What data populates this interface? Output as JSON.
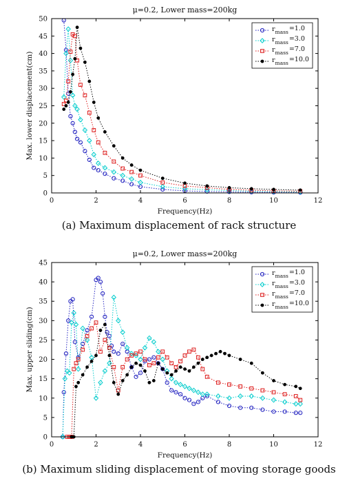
{
  "chart_data": [
    {
      "type": "scatter",
      "title": "μ=0.2, Lower mass=200kg",
      "xlabel": "Frequency(Hz)",
      "ylabel": "Max. lower displacement(cm)",
      "xlim": [
        0,
        12
      ],
      "ylim": [
        0,
        50
      ],
      "xticks": [
        0,
        2,
        4,
        6,
        8,
        10,
        12
      ],
      "yticks": [
        0,
        5,
        10,
        15,
        20,
        25,
        30,
        35,
        40,
        45,
        50
      ],
      "grid": false,
      "legend_position": "top-right",
      "caption": "(a) Maximum displacement of rack structure",
      "series": [
        {
          "name_main": "r",
          "name_sub": "mass",
          "name_value": "=1.0",
          "color": "#1f1fbf",
          "marker": "circle",
          "x": [
            0.55,
            0.65,
            0.75,
            0.85,
            0.95,
            1.05,
            1.15,
            1.3,
            1.5,
            1.7,
            1.9,
            2.1,
            2.4,
            2.8,
            3.2,
            3.6,
            4.0,
            5.0,
            6.0,
            7.0,
            8.0,
            9.0,
            10.0,
            11.2
          ],
          "y": [
            49.5,
            41.0,
            28.5,
            22.0,
            20.0,
            17.5,
            15.5,
            14.5,
            12.0,
            9.5,
            7.2,
            6.5,
            5.5,
            4.2,
            3.5,
            2.5,
            1.8,
            1.0,
            0.6,
            0.4,
            0.3,
            0.2,
            0.15,
            0.1
          ]
        },
        {
          "name_main": "r",
          "name_sub": "mass",
          "name_value": "=3.0",
          "color": "#00cccc",
          "marker": "diamond",
          "x": [
            0.55,
            0.65,
            0.75,
            0.85,
            0.95,
            1.05,
            1.15,
            1.3,
            1.5,
            1.7,
            1.9,
            2.1,
            2.4,
            2.8,
            3.2,
            3.6,
            4.0,
            5.0,
            6.0,
            7.0,
            8.0,
            9.0,
            10.0,
            11.2
          ],
          "y": [
            27.5,
            40.0,
            47.0,
            38.0,
            28.0,
            25.0,
            24.0,
            21.0,
            18.0,
            15.0,
            11.0,
            8.5,
            7.2,
            6.0,
            5.0,
            4.0,
            3.0,
            1.8,
            1.2,
            0.9,
            0.7,
            0.5,
            0.4,
            0.3
          ]
        },
        {
          "name_main": "r",
          "name_sub": "mass",
          "name_value": "=7.0",
          "color": "#dd1c1c",
          "marker": "square",
          "x": [
            0.55,
            0.65,
            0.75,
            0.85,
            0.95,
            1.05,
            1.15,
            1.3,
            1.5,
            1.7,
            1.9,
            2.1,
            2.4,
            2.8,
            3.2,
            3.6,
            4.0,
            5.0,
            6.0,
            7.0,
            8.0,
            9.0,
            10.0,
            11.2
          ],
          "y": [
            25.5,
            26.5,
            32.0,
            40.5,
            45.5,
            45.0,
            38.0,
            31.0,
            28.0,
            23.0,
            18.0,
            14.5,
            11.5,
            9.0,
            7.0,
            6.0,
            5.0,
            3.0,
            2.0,
            1.5,
            1.0,
            0.8,
            0.6,
            0.5
          ]
        },
        {
          "name_main": "r",
          "name_sub": "mass",
          "name_value": "=10.0",
          "color": "#000000",
          "marker": "dot",
          "x": [
            0.55,
            0.65,
            0.75,
            0.85,
            0.95,
            1.05,
            1.15,
            1.3,
            1.5,
            1.7,
            1.9,
            2.1,
            2.4,
            2.8,
            3.2,
            3.6,
            4.0,
            5.0,
            6.0,
            7.0,
            8.0,
            9.0,
            10.0,
            11.2
          ],
          "y": [
            24.0,
            25.0,
            26.0,
            29.0,
            34.0,
            38.5,
            47.5,
            41.5,
            37.5,
            32.0,
            26.0,
            21.5,
            17.5,
            13.5,
            10.0,
            8.0,
            6.5,
            4.2,
            2.8,
            2.0,
            1.5,
            1.2,
            1.0,
            0.8
          ]
        }
      ]
    },
    {
      "type": "scatter",
      "title": "μ=0.2, Lower mass=200kg",
      "xlabel": "Frequency(Hz)",
      "ylabel": "Max. upper sliding(cm)",
      "xlim": [
        0,
        12
      ],
      "ylim": [
        0,
        45
      ],
      "xticks": [
        0,
        2,
        4,
        6,
        8,
        10,
        12
      ],
      "yticks": [
        0,
        5,
        10,
        15,
        20,
        25,
        30,
        35,
        40,
        45
      ],
      "grid": false,
      "legend_position": "top-right",
      "caption": "(b) Maximum sliding displacement of moving storage goods",
      "series": [
        {
          "name_main": "r",
          "name_sub": "mass",
          "name_value": "=1.0",
          "color": "#1f1fbf",
          "marker": "circle",
          "x": [
            0.5,
            0.55,
            0.65,
            0.75,
            0.85,
            0.95,
            1.05,
            1.2,
            1.4,
            1.6,
            1.8,
            2.0,
            2.1,
            2.2,
            2.3,
            2.4,
            2.5,
            2.6,
            2.7,
            2.8,
            3.0,
            3.2,
            3.4,
            3.6,
            3.8,
            4.0,
            4.2,
            4.4,
            4.6,
            4.8,
            5.0,
            5.2,
            5.4,
            5.6,
            5.8,
            6.0,
            6.2,
            6.4,
            6.6,
            6.8,
            7.0,
            7.5,
            8.0,
            8.5,
            9.0,
            9.5,
            10.0,
            10.5,
            11.0,
            11.2
          ],
          "y": [
            0,
            11.5,
            21.5,
            30.0,
            35.0,
            35.5,
            24.5,
            20.5,
            24.0,
            27.5,
            31.0,
            40.5,
            41.0,
            40.0,
            37.0,
            31.0,
            27.0,
            26.0,
            23.5,
            22.0,
            21.5,
            24.0,
            22.0,
            18.0,
            15.5,
            16.5,
            19.5,
            20.0,
            20.5,
            19.0,
            17.5,
            14.0,
            12.0,
            11.5,
            11.0,
            10.0,
            9.5,
            8.5,
            9.0,
            10.0,
            10.5,
            9.0,
            8.0,
            7.5,
            7.5,
            7.0,
            6.5,
            6.5,
            6.2,
            6.2
          ]
        },
        {
          "name_main": "r",
          "name_sub": "mass",
          "name_value": "=3.0",
          "color": "#00cccc",
          "marker": "diamond",
          "x": [
            0.5,
            0.6,
            0.7,
            0.8,
            0.9,
            1.0,
            1.1,
            1.2,
            1.4,
            1.6,
            1.8,
            2.0,
            2.2,
            2.4,
            2.6,
            2.8,
            3.0,
            3.2,
            3.4,
            3.6,
            3.8,
            4.0,
            4.2,
            4.4,
            4.6,
            4.8,
            5.0,
            5.2,
            5.4,
            5.6,
            5.8,
            6.0,
            6.2,
            6.4,
            6.6,
            6.8,
            7.0,
            7.5,
            8.0,
            8.5,
            9.0,
            9.5,
            10.0,
            10.5,
            11.0,
            11.2
          ],
          "y": [
            0,
            15.0,
            17.0,
            16.5,
            29.5,
            32.0,
            29.0,
            17.5,
            28.0,
            25.0,
            20.5,
            10.0,
            14.0,
            17.0,
            19.0,
            36.0,
            30.0,
            27.0,
            23.0,
            21.5,
            21.0,
            20.0,
            23.0,
            25.5,
            24.5,
            22.0,
            20.0,
            17.0,
            15.0,
            14.0,
            13.5,
            13.0,
            12.5,
            12.0,
            11.5,
            11.0,
            11.0,
            10.5,
            10.0,
            10.5,
            10.5,
            10.0,
            9.5,
            9.0,
            8.5,
            8.5
          ]
        },
        {
          "name_main": "r",
          "name_sub": "mass",
          "name_value": "=7.0",
          "color": "#dd1c1c",
          "marker": "square",
          "x": [
            0.7,
            0.8,
            0.9,
            1.0,
            1.1,
            1.2,
            1.4,
            1.6,
            1.8,
            2.0,
            2.2,
            2.4,
            2.6,
            2.8,
            3.0,
            3.2,
            3.4,
            3.6,
            3.8,
            4.0,
            4.2,
            4.4,
            4.6,
            4.8,
            5.0,
            5.2,
            5.4,
            5.6,
            5.8,
            6.0,
            6.2,
            6.4,
            6.6,
            6.8,
            7.0,
            7.5,
            8.0,
            8.5,
            9.0,
            9.5,
            10.0,
            10.5,
            11.0,
            11.2
          ],
          "y": [
            0,
            0,
            0,
            17.5,
            19.0,
            20.0,
            22.5,
            26.0,
            28.0,
            29.5,
            22.0,
            25.0,
            23.0,
            18.0,
            12.0,
            18.0,
            20.0,
            21.0,
            21.5,
            22.0,
            20.0,
            18.5,
            19.0,
            20.5,
            22.0,
            20.5,
            19.0,
            18.0,
            19.5,
            21.0,
            22.0,
            22.5,
            20.5,
            17.5,
            15.5,
            14.0,
            13.5,
            13.0,
            12.5,
            12.0,
            11.5,
            11.0,
            10.5,
            9.5
          ]
        },
        {
          "name_main": "r",
          "name_sub": "mass",
          "name_value": "=10.0",
          "color": "#000000",
          "marker": "dot",
          "x": [
            0.9,
            1.0,
            1.1,
            1.2,
            1.4,
            1.6,
            1.8,
            2.0,
            2.2,
            2.4,
            2.6,
            2.8,
            3.0,
            3.2,
            3.4,
            3.6,
            3.8,
            4.0,
            4.2,
            4.4,
            4.6,
            4.8,
            5.0,
            5.2,
            5.4,
            5.6,
            5.8,
            6.0,
            6.2,
            6.4,
            6.6,
            6.8,
            7.0,
            7.2,
            7.4,
            7.6,
            7.8,
            8.0,
            8.5,
            9.0,
            9.5,
            10.0,
            10.5,
            11.0,
            11.2
          ],
          "y": [
            0,
            0,
            13.0,
            14.0,
            16.0,
            18.0,
            19.5,
            21.0,
            27.5,
            29.0,
            21.0,
            14.0,
            11.0,
            14.5,
            16.0,
            18.0,
            19.0,
            18.5,
            17.0,
            14.0,
            14.5,
            19.0,
            17.5,
            16.5,
            16.0,
            17.0,
            18.0,
            17.5,
            17.0,
            18.0,
            19.0,
            20.0,
            20.5,
            21.0,
            21.5,
            22.0,
            21.5,
            21.0,
            20.0,
            19.0,
            16.5,
            14.5,
            13.5,
            13.0,
            12.5
          ]
        }
      ]
    }
  ]
}
